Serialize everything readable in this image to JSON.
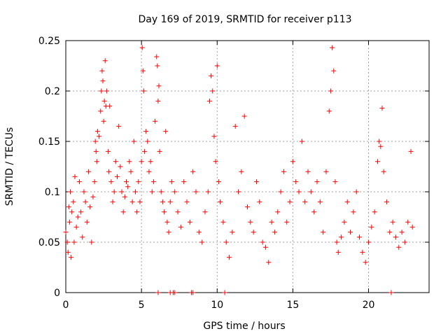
{
  "chart_data": {
    "type": "scatter",
    "title": "Day 169 of 2019, SRMTID for receiver p113",
    "xlabel": "GPS time / hours",
    "ylabel": "SRMTID / TECUs",
    "xlim": [
      0,
      24
    ],
    "ylim": [
      0,
      0.25
    ],
    "xticks": [
      0,
      5,
      10,
      15,
      20
    ],
    "xtick_labels": [
      "0",
      "5",
      "10",
      "15",
      "20"
    ],
    "yticks": [
      0,
      0.05,
      0.1,
      0.15,
      0.2,
      0.25
    ],
    "ytick_labels": [
      "0",
      "0.05",
      "0.1",
      "0.15",
      "0.2",
      "0.25"
    ],
    "grid": true,
    "marker": "+",
    "series": [
      {
        "name": "SRMTID",
        "color": "#ff0000",
        "points": [
          [
            0.0,
            0.06
          ],
          [
            0.1,
            0.05
          ],
          [
            0.15,
            0.04
          ],
          [
            0.2,
            0.085
          ],
          [
            0.25,
            0.07
          ],
          [
            0.3,
            0.1
          ],
          [
            0.35,
            0.035
          ],
          [
            0.4,
            0.08
          ],
          [
            0.5,
            0.09
          ],
          [
            0.55,
            0.05
          ],
          [
            0.6,
            0.115
          ],
          [
            0.7,
            0.065
          ],
          [
            0.8,
            0.075
          ],
          [
            0.9,
            0.11
          ],
          [
            1.0,
            0.08
          ],
          [
            1.1,
            0.055
          ],
          [
            1.2,
            0.1
          ],
          [
            1.3,
            0.09
          ],
          [
            1.4,
            0.07
          ],
          [
            1.5,
            0.12
          ],
          [
            1.6,
            0.085
          ],
          [
            1.7,
            0.05
          ],
          [
            1.8,
            0.095
          ],
          [
            1.9,
            0.11
          ],
          [
            1.95,
            0.15
          ],
          [
            2.0,
            0.14
          ],
          [
            2.05,
            0.13
          ],
          [
            2.1,
            0.16
          ],
          [
            2.2,
            0.155
          ],
          [
            2.3,
            0.18
          ],
          [
            2.35,
            0.2
          ],
          [
            2.4,
            0.22
          ],
          [
            2.45,
            0.21
          ],
          [
            2.5,
            0.17
          ],
          [
            2.55,
            0.19
          ],
          [
            2.6,
            0.23
          ],
          [
            2.65,
            0.185
          ],
          [
            2.7,
            0.2
          ],
          [
            2.8,
            0.14
          ],
          [
            2.85,
            0.12
          ],
          [
            2.9,
            0.185
          ],
          [
            3.0,
            0.11
          ],
          [
            3.1,
            0.09
          ],
          [
            3.2,
            0.1
          ],
          [
            3.3,
            0.13
          ],
          [
            3.4,
            0.115
          ],
          [
            3.5,
            0.165
          ],
          [
            3.6,
            0.125
          ],
          [
            3.7,
            0.1
          ],
          [
            3.8,
            0.08
          ],
          [
            3.9,
            0.095
          ],
          [
            4.0,
            0.11
          ],
          [
            4.1,
            0.105
          ],
          [
            4.2,
            0.13
          ],
          [
            4.3,
            0.12
          ],
          [
            4.4,
            0.09
          ],
          [
            4.5,
            0.15
          ],
          [
            4.6,
            0.1
          ],
          [
            4.7,
            0.08
          ],
          [
            4.8,
            0.11
          ],
          [
            4.9,
            0.09
          ],
          [
            5.0,
            0.13
          ],
          [
            5.05,
            0.243
          ],
          [
            5.1,
            0.22
          ],
          [
            5.15,
            0.2
          ],
          [
            5.2,
            0.14
          ],
          [
            5.3,
            0.16
          ],
          [
            5.4,
            0.15
          ],
          [
            5.5,
            0.12
          ],
          [
            5.6,
            0.13
          ],
          [
            5.7,
            0.1
          ],
          [
            5.8,
            0.11
          ],
          [
            5.9,
            0.17
          ],
          [
            6.0,
            0.234
          ],
          [
            6.05,
            0.225
          ],
          [
            6.1,
            0.19
          ],
          [
            6.15,
            0.205
          ],
          [
            6.2,
            0.14
          ],
          [
            6.3,
            0.1
          ],
          [
            6.4,
            0.09
          ],
          [
            6.5,
            0.08
          ],
          [
            6.6,
            0.16
          ],
          [
            6.7,
            0.07
          ],
          [
            6.8,
            0.06
          ],
          [
            6.9,
            0.09
          ],
          [
            7.0,
            0.11
          ],
          [
            7.2,
            0.1
          ],
          [
            7.4,
            0.08
          ],
          [
            7.6,
            0.065
          ],
          [
            7.8,
            0.11
          ],
          [
            8.0,
            0.09
          ],
          [
            8.2,
            0.07
          ],
          [
            8.4,
            0.12
          ],
          [
            8.6,
            0.1
          ],
          [
            8.8,
            0.06
          ],
          [
            9.0,
            0.05
          ],
          [
            9.2,
            0.08
          ],
          [
            9.4,
            0.1
          ],
          [
            9.5,
            0.19
          ],
          [
            9.6,
            0.215
          ],
          [
            9.7,
            0.2
          ],
          [
            9.8,
            0.155
          ],
          [
            9.9,
            0.13
          ],
          [
            10.0,
            0.225
          ],
          [
            10.1,
            0.11
          ],
          [
            10.2,
            0.09
          ],
          [
            10.4,
            0.07
          ],
          [
            10.6,
            0.05
          ],
          [
            10.8,
            0.035
          ],
          [
            11.0,
            0.06
          ],
          [
            11.2,
            0.165
          ],
          [
            11.4,
            0.1
          ],
          [
            11.6,
            0.12
          ],
          [
            11.8,
            0.175
          ],
          [
            12.0,
            0.085
          ],
          [
            12.2,
            0.07
          ],
          [
            12.4,
            0.06
          ],
          [
            12.6,
            0.11
          ],
          [
            12.8,
            0.09
          ],
          [
            13.0,
            0.05
          ],
          [
            13.2,
            0.045
          ],
          [
            13.4,
            0.03
          ],
          [
            13.6,
            0.07
          ],
          [
            13.8,
            0.06
          ],
          [
            14.0,
            0.08
          ],
          [
            14.2,
            0.1
          ],
          [
            14.4,
            0.12
          ],
          [
            14.6,
            0.07
          ],
          [
            14.8,
            0.09
          ],
          [
            15.0,
            0.13
          ],
          [
            15.2,
            0.11
          ],
          [
            15.4,
            0.1
          ],
          [
            15.6,
            0.15
          ],
          [
            15.8,
            0.09
          ],
          [
            16.0,
            0.12
          ],
          [
            16.2,
            0.1
          ],
          [
            16.4,
            0.08
          ],
          [
            16.6,
            0.11
          ],
          [
            16.8,
            0.09
          ],
          [
            17.0,
            0.06
          ],
          [
            17.2,
            0.12
          ],
          [
            17.4,
            0.18
          ],
          [
            17.5,
            0.2
          ],
          [
            17.6,
            0.243
          ],
          [
            17.7,
            0.22
          ],
          [
            17.8,
            0.11
          ],
          [
            17.9,
            0.05
          ],
          [
            18.0,
            0.04
          ],
          [
            18.2,
            0.055
          ],
          [
            18.4,
            0.07
          ],
          [
            18.6,
            0.09
          ],
          [
            18.8,
            0.06
          ],
          [
            19.0,
            0.08
          ],
          [
            19.2,
            0.1
          ],
          [
            19.4,
            0.055
          ],
          [
            19.6,
            0.04
          ],
          [
            19.8,
            0.03
          ],
          [
            20.0,
            0.05
          ],
          [
            20.2,
            0.065
          ],
          [
            20.4,
            0.08
          ],
          [
            20.6,
            0.13
          ],
          [
            20.7,
            0.15
          ],
          [
            20.8,
            0.145
          ],
          [
            20.9,
            0.183
          ],
          [
            21.0,
            0.12
          ],
          [
            21.2,
            0.09
          ],
          [
            21.4,
            0.06
          ],
          [
            21.6,
            0.07
          ],
          [
            21.8,
            0.055
          ],
          [
            22.0,
            0.045
          ],
          [
            22.2,
            0.06
          ],
          [
            22.4,
            0.05
          ],
          [
            22.6,
            0.07
          ],
          [
            22.8,
            0.14
          ],
          [
            22.9,
            0.065
          ]
        ]
      }
    ],
    "zero_points": [
      6.1,
      6.9,
      7.1,
      7.2,
      8.3,
      8.4,
      10.5,
      21.5
    ]
  }
}
